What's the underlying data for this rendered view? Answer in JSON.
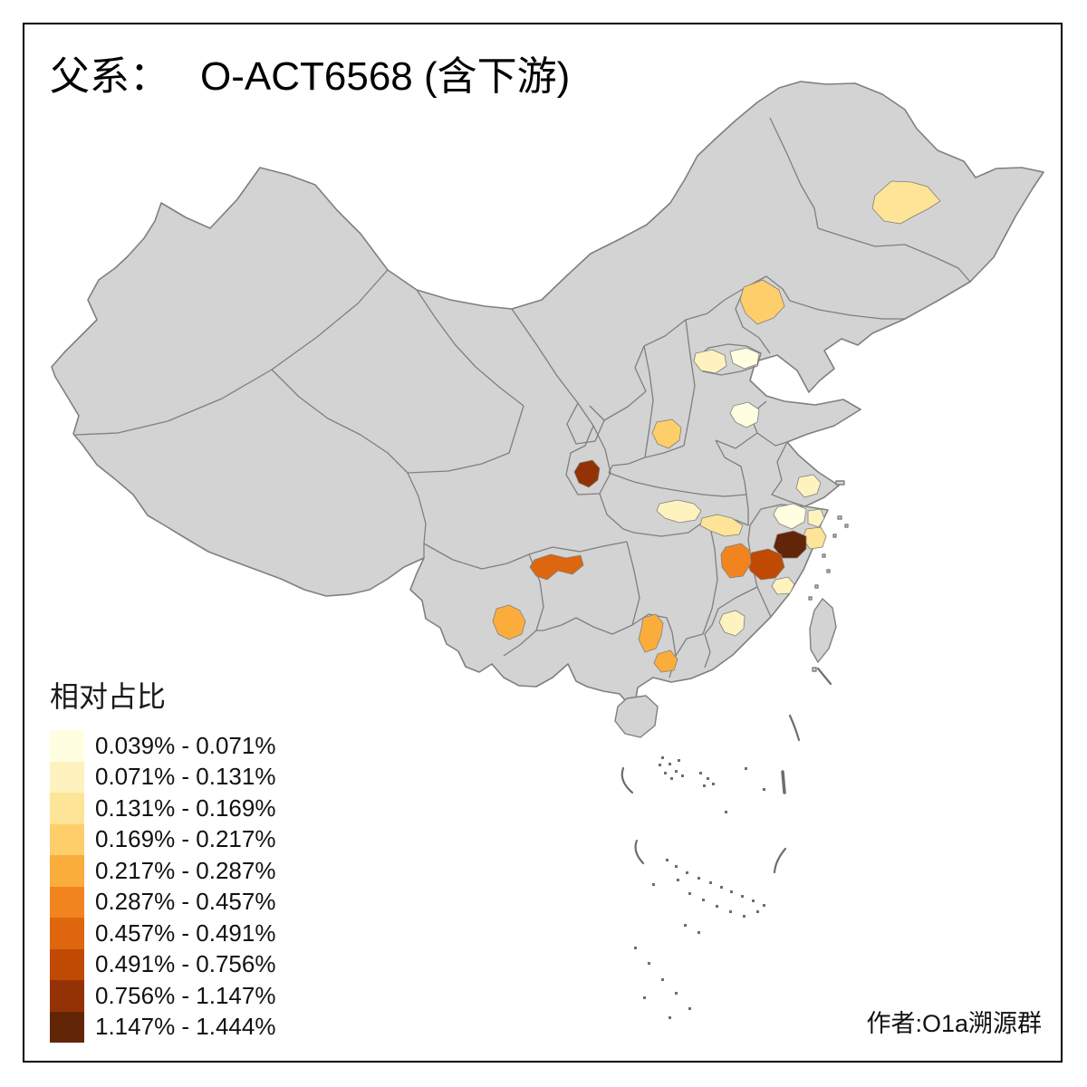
{
  "title": {
    "prefix": "父系：",
    "main": "O-ACT6568 (含下游)"
  },
  "legend": {
    "title": "相对占比",
    "classes": [
      {
        "label": "0.039% - 0.071%",
        "color": "#FFFEE0"
      },
      {
        "label": "0.071% - 0.131%",
        "color": "#FEF3BF"
      },
      {
        "label": "0.131% - 0.169%",
        "color": "#FEE497"
      },
      {
        "label": "0.169% - 0.217%",
        "color": "#FDCE6A"
      },
      {
        "label": "0.217% - 0.287%",
        "color": "#FBAD3C"
      },
      {
        "label": "0.287% - 0.457%",
        "color": "#F28420"
      },
      {
        "label": "0.457% - 0.491%",
        "color": "#DD660F"
      },
      {
        "label": "0.491% - 0.756%",
        "color": "#C04A04"
      },
      {
        "label": "0.756% - 1.147%",
        "color": "#933305"
      },
      {
        "label": "1.147% - 1.444%",
        "color": "#622507"
      }
    ]
  },
  "map": {
    "base_color": "#D3D3D3",
    "border_color": "#7F7F7F",
    "sea_dash_color": "#6E6E6E",
    "highlighted_regions": [
      {
        "id": "heilongjiang-central",
        "class_index": 2,
        "range": "0.131% - 0.169%"
      },
      {
        "id": "hebei-north",
        "class_index": 3,
        "range": "0.169% - 0.217%"
      },
      {
        "id": "beijing-west",
        "class_index": 1,
        "range": "0.071% - 0.131%"
      },
      {
        "id": "beijing-east",
        "class_index": 0,
        "range": "0.039% - 0.071%"
      },
      {
        "id": "shandong-west",
        "class_index": 0,
        "range": "0.039% - 0.071%"
      },
      {
        "id": "shanxi-south",
        "class_index": 3,
        "range": "0.169% - 0.217%"
      },
      {
        "id": "gansu-southeast",
        "class_index": 8,
        "range": "0.756% - 1.147%"
      },
      {
        "id": "hubei-northwest",
        "class_index": 1,
        "range": "0.071% - 0.131%"
      },
      {
        "id": "anhui-south",
        "class_index": 2,
        "range": "0.131% - 0.169%"
      },
      {
        "id": "jiangsu-south",
        "class_index": 1,
        "range": "0.071% - 0.131%"
      },
      {
        "id": "zhejiang-north",
        "class_index": 0,
        "range": "0.039% - 0.071%"
      },
      {
        "id": "zhejiang-northeast",
        "class_index": 1,
        "range": "0.071% - 0.131%"
      },
      {
        "id": "zhejiang-ningbo",
        "class_index": 2,
        "range": "0.131% - 0.169%"
      },
      {
        "id": "zhejiang-central",
        "class_index": 9,
        "range": "1.147% - 1.444%"
      },
      {
        "id": "zhejiang-southwest",
        "class_index": 7,
        "range": "0.491% - 0.756%"
      },
      {
        "id": "jiangxi-northeast",
        "class_index": 5,
        "range": "0.287% - 0.457%"
      },
      {
        "id": "zhejiang-south",
        "class_index": 1,
        "range": "0.071% - 0.131%"
      },
      {
        "id": "fujian-west",
        "class_index": 1,
        "range": "0.071% - 0.131%"
      },
      {
        "id": "guizhou-west",
        "class_index": 6,
        "range": "0.457% - 0.491%"
      },
      {
        "id": "yunnan-central",
        "class_index": 4,
        "range": "0.217% - 0.287%"
      },
      {
        "id": "guangxi-northeast",
        "class_index": 4,
        "range": "0.217% - 0.287%"
      },
      {
        "id": "guangdong-southwest",
        "class_index": 4,
        "range": "0.217% - 0.287%"
      }
    ]
  },
  "attribution": "作者:O1a溯源群"
}
